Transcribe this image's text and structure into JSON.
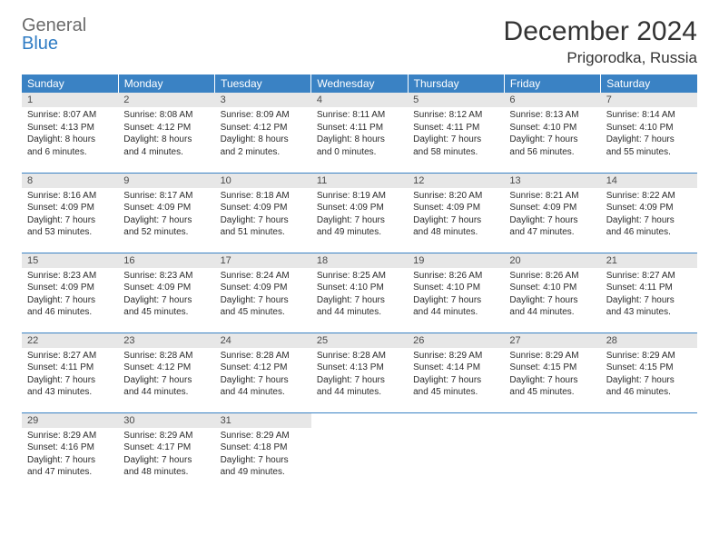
{
  "logo": {
    "line1": "General",
    "line2": "Blue"
  },
  "title": "December 2024",
  "location": "Prigorodka, Russia",
  "colors": {
    "header_bg": "#3a82c4",
    "header_fg": "#ffffff",
    "daynum_bg": "#e7e7e7",
    "rule": "#3a82c4",
    "text": "#2b2b2b",
    "logo_gray": "#6b6b6b",
    "logo_blue": "#2f7cc4"
  },
  "weekdays": [
    "Sunday",
    "Monday",
    "Tuesday",
    "Wednesday",
    "Thursday",
    "Friday",
    "Saturday"
  ],
  "weeks": [
    [
      {
        "n": "1",
        "sr": "Sunrise: 8:07 AM",
        "ss": "Sunset: 4:13 PM",
        "d1": "Daylight: 8 hours",
        "d2": "and 6 minutes."
      },
      {
        "n": "2",
        "sr": "Sunrise: 8:08 AM",
        "ss": "Sunset: 4:12 PM",
        "d1": "Daylight: 8 hours",
        "d2": "and 4 minutes."
      },
      {
        "n": "3",
        "sr": "Sunrise: 8:09 AM",
        "ss": "Sunset: 4:12 PM",
        "d1": "Daylight: 8 hours",
        "d2": "and 2 minutes."
      },
      {
        "n": "4",
        "sr": "Sunrise: 8:11 AM",
        "ss": "Sunset: 4:11 PM",
        "d1": "Daylight: 8 hours",
        "d2": "and 0 minutes."
      },
      {
        "n": "5",
        "sr": "Sunrise: 8:12 AM",
        "ss": "Sunset: 4:11 PM",
        "d1": "Daylight: 7 hours",
        "d2": "and 58 minutes."
      },
      {
        "n": "6",
        "sr": "Sunrise: 8:13 AM",
        "ss": "Sunset: 4:10 PM",
        "d1": "Daylight: 7 hours",
        "d2": "and 56 minutes."
      },
      {
        "n": "7",
        "sr": "Sunrise: 8:14 AM",
        "ss": "Sunset: 4:10 PM",
        "d1": "Daylight: 7 hours",
        "d2": "and 55 minutes."
      }
    ],
    [
      {
        "n": "8",
        "sr": "Sunrise: 8:16 AM",
        "ss": "Sunset: 4:09 PM",
        "d1": "Daylight: 7 hours",
        "d2": "and 53 minutes."
      },
      {
        "n": "9",
        "sr": "Sunrise: 8:17 AM",
        "ss": "Sunset: 4:09 PM",
        "d1": "Daylight: 7 hours",
        "d2": "and 52 minutes."
      },
      {
        "n": "10",
        "sr": "Sunrise: 8:18 AM",
        "ss": "Sunset: 4:09 PM",
        "d1": "Daylight: 7 hours",
        "d2": "and 51 minutes."
      },
      {
        "n": "11",
        "sr": "Sunrise: 8:19 AM",
        "ss": "Sunset: 4:09 PM",
        "d1": "Daylight: 7 hours",
        "d2": "and 49 minutes."
      },
      {
        "n": "12",
        "sr": "Sunrise: 8:20 AM",
        "ss": "Sunset: 4:09 PM",
        "d1": "Daylight: 7 hours",
        "d2": "and 48 minutes."
      },
      {
        "n": "13",
        "sr": "Sunrise: 8:21 AM",
        "ss": "Sunset: 4:09 PM",
        "d1": "Daylight: 7 hours",
        "d2": "and 47 minutes."
      },
      {
        "n": "14",
        "sr": "Sunrise: 8:22 AM",
        "ss": "Sunset: 4:09 PM",
        "d1": "Daylight: 7 hours",
        "d2": "and 46 minutes."
      }
    ],
    [
      {
        "n": "15",
        "sr": "Sunrise: 8:23 AM",
        "ss": "Sunset: 4:09 PM",
        "d1": "Daylight: 7 hours",
        "d2": "and 46 minutes."
      },
      {
        "n": "16",
        "sr": "Sunrise: 8:23 AM",
        "ss": "Sunset: 4:09 PM",
        "d1": "Daylight: 7 hours",
        "d2": "and 45 minutes."
      },
      {
        "n": "17",
        "sr": "Sunrise: 8:24 AM",
        "ss": "Sunset: 4:09 PM",
        "d1": "Daylight: 7 hours",
        "d2": "and 45 minutes."
      },
      {
        "n": "18",
        "sr": "Sunrise: 8:25 AM",
        "ss": "Sunset: 4:10 PM",
        "d1": "Daylight: 7 hours",
        "d2": "and 44 minutes."
      },
      {
        "n": "19",
        "sr": "Sunrise: 8:26 AM",
        "ss": "Sunset: 4:10 PM",
        "d1": "Daylight: 7 hours",
        "d2": "and 44 minutes."
      },
      {
        "n": "20",
        "sr": "Sunrise: 8:26 AM",
        "ss": "Sunset: 4:10 PM",
        "d1": "Daylight: 7 hours",
        "d2": "and 44 minutes."
      },
      {
        "n": "21",
        "sr": "Sunrise: 8:27 AM",
        "ss": "Sunset: 4:11 PM",
        "d1": "Daylight: 7 hours",
        "d2": "and 43 minutes."
      }
    ],
    [
      {
        "n": "22",
        "sr": "Sunrise: 8:27 AM",
        "ss": "Sunset: 4:11 PM",
        "d1": "Daylight: 7 hours",
        "d2": "and 43 minutes."
      },
      {
        "n": "23",
        "sr": "Sunrise: 8:28 AM",
        "ss": "Sunset: 4:12 PM",
        "d1": "Daylight: 7 hours",
        "d2": "and 44 minutes."
      },
      {
        "n": "24",
        "sr": "Sunrise: 8:28 AM",
        "ss": "Sunset: 4:12 PM",
        "d1": "Daylight: 7 hours",
        "d2": "and 44 minutes."
      },
      {
        "n": "25",
        "sr": "Sunrise: 8:28 AM",
        "ss": "Sunset: 4:13 PM",
        "d1": "Daylight: 7 hours",
        "d2": "and 44 minutes."
      },
      {
        "n": "26",
        "sr": "Sunrise: 8:29 AM",
        "ss": "Sunset: 4:14 PM",
        "d1": "Daylight: 7 hours",
        "d2": "and 45 minutes."
      },
      {
        "n": "27",
        "sr": "Sunrise: 8:29 AM",
        "ss": "Sunset: 4:15 PM",
        "d1": "Daylight: 7 hours",
        "d2": "and 45 minutes."
      },
      {
        "n": "28",
        "sr": "Sunrise: 8:29 AM",
        "ss": "Sunset: 4:15 PM",
        "d1": "Daylight: 7 hours",
        "d2": "and 46 minutes."
      }
    ],
    [
      {
        "n": "29",
        "sr": "Sunrise: 8:29 AM",
        "ss": "Sunset: 4:16 PM",
        "d1": "Daylight: 7 hours",
        "d2": "and 47 minutes."
      },
      {
        "n": "30",
        "sr": "Sunrise: 8:29 AM",
        "ss": "Sunset: 4:17 PM",
        "d1": "Daylight: 7 hours",
        "d2": "and 48 minutes."
      },
      {
        "n": "31",
        "sr": "Sunrise: 8:29 AM",
        "ss": "Sunset: 4:18 PM",
        "d1": "Daylight: 7 hours",
        "d2": "and 49 minutes."
      },
      null,
      null,
      null,
      null
    ]
  ]
}
